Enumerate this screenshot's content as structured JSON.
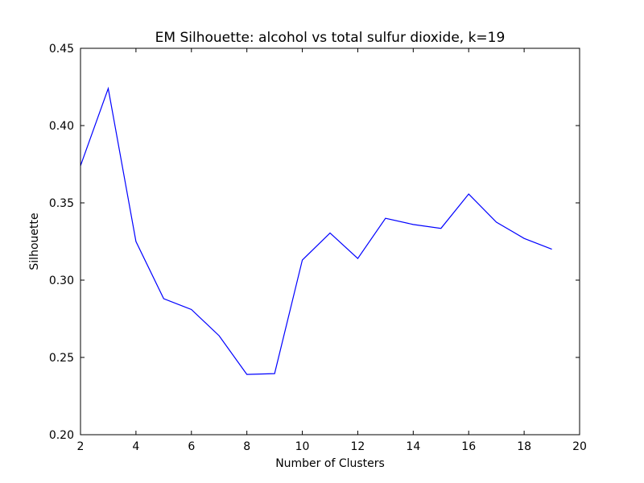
{
  "chart_data": {
    "type": "line",
    "title": "EM Silhouette: alcohol vs total sulfur dioxide, k=19",
    "xlabel": "Number of Clusters",
    "ylabel": "Silhouette",
    "xlim": [
      2,
      20
    ],
    "ylim": [
      0.2,
      0.45
    ],
    "xticks": [
      2,
      4,
      6,
      8,
      10,
      12,
      14,
      16,
      18,
      20
    ],
    "yticks": [
      0.2,
      0.25,
      0.3,
      0.35,
      0.4,
      0.45
    ],
    "grid": false,
    "line_color": "#0000ff",
    "series": [
      {
        "x": [
          2,
          3,
          4,
          5,
          6,
          7,
          8,
          9,
          10,
          11,
          12,
          13,
          14,
          15,
          16,
          17,
          18,
          19
        ],
        "values": [
          0.374,
          0.424,
          0.325,
          0.288,
          0.281,
          0.264,
          0.239,
          0.2395,
          0.313,
          0.3305,
          0.314,
          0.34,
          0.336,
          0.3335,
          0.3557,
          0.3375,
          0.327,
          0.32
        ]
      }
    ]
  }
}
